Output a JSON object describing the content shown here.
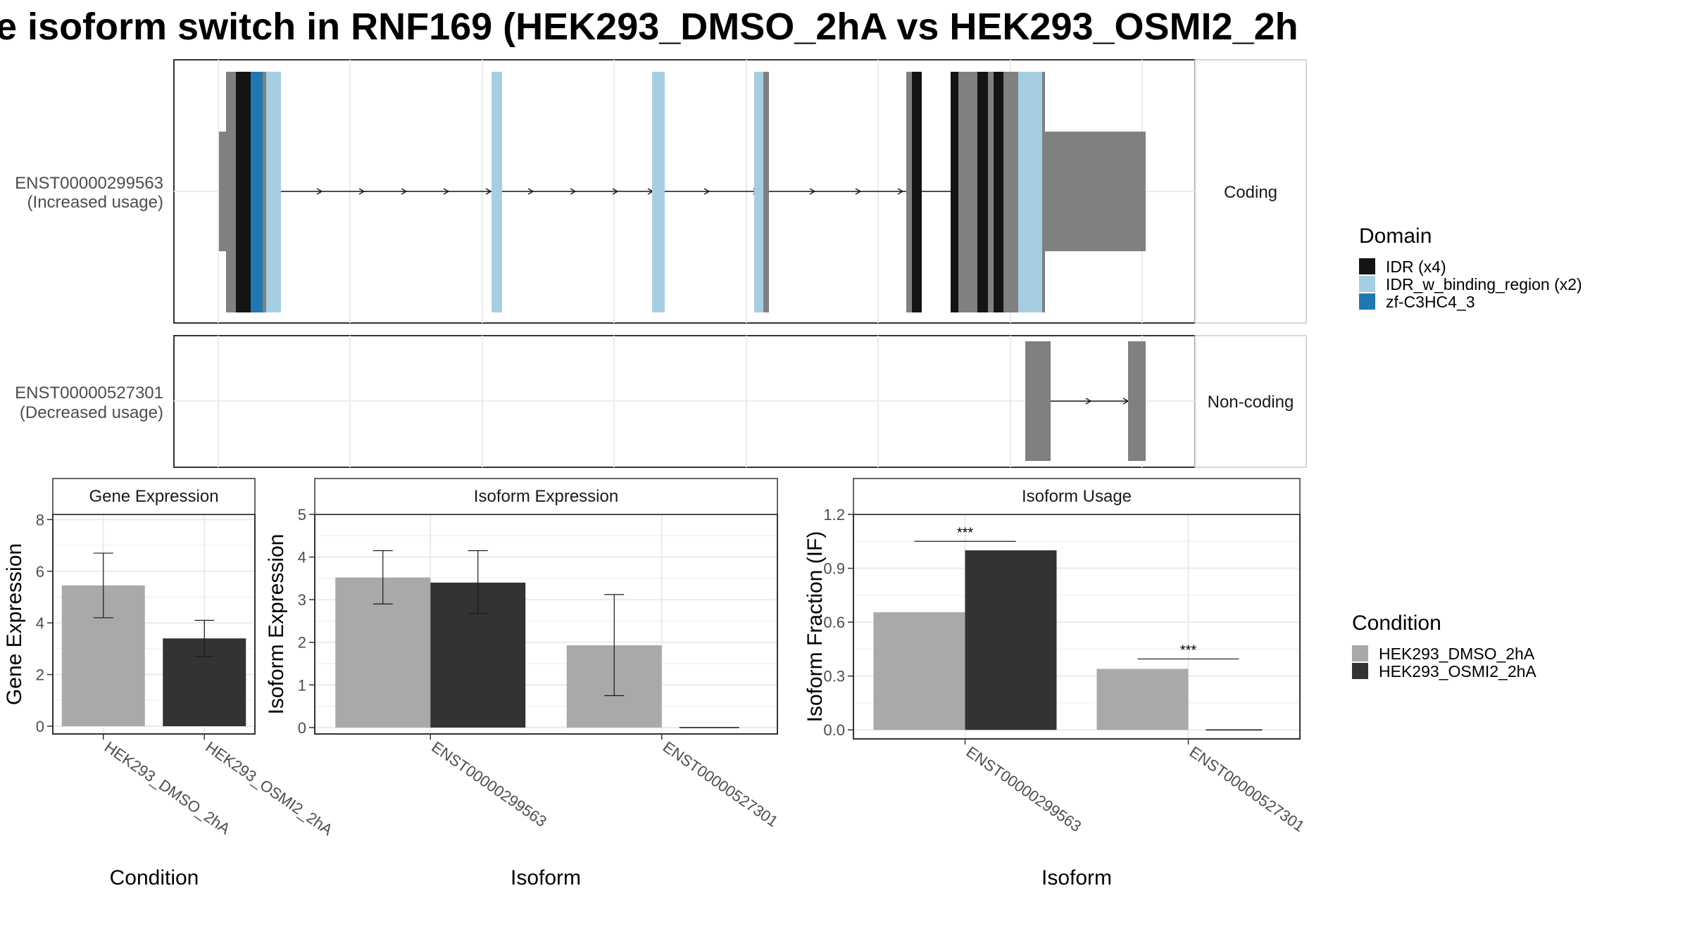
{
  "title": "e isoform switch in RNF169 (HEK293_DMSO_2hA vs HEK293_OSMI2_2h",
  "colors": {
    "dmso": "#a9a9a9",
    "osmi": "#333333",
    "exon_gray": "#808080",
    "idr": "#141414",
    "idr_w_binding": "#a6cee3",
    "zf": "#1f78b4"
  },
  "isoform_structure": {
    "tracks": [
      {
        "id": "ENST00000299563",
        "label_line1": "ENST00000299563",
        "label_line2": "(Increased usage)",
        "strip": "Coding"
      },
      {
        "id": "ENST00000527301",
        "label_line1": "ENST00000527301",
        "label_line2": "(Decreased usage)",
        "strip": "Non-coding"
      }
    ]
  },
  "domain_legend": {
    "title": "Domain",
    "entries": [
      {
        "label": "IDR (x4)",
        "color": "#141414"
      },
      {
        "label": "IDR_w_binding_region (x2)",
        "color": "#a6cee3"
      },
      {
        "label": "zf-C3HC4_3",
        "color": "#1f78b4"
      }
    ]
  },
  "condition_legend": {
    "title": "Condition",
    "entries": [
      {
        "label": "HEK293_DMSO_2hA",
        "color": "#a9a9a9"
      },
      {
        "label": "HEK293_OSMI2_2hA",
        "color": "#333333"
      }
    ]
  },
  "chart_data": [
    {
      "type": "bar",
      "title": "Gene Expression",
      "xlabel": "Condition",
      "ylabel": "Gene Expression",
      "ylim": [
        -0.3,
        8.2
      ],
      "yticks": [
        0,
        2,
        4,
        6,
        8
      ],
      "categories": [
        "HEK293_DMSO_2hA",
        "HEK293_OSMI2_2hA"
      ],
      "values": [
        5.45,
        3.4
      ],
      "errors": [
        [
          4.2,
          6.7
        ],
        [
          2.7,
          4.1
        ]
      ],
      "colors": [
        "#a9a9a9",
        "#333333"
      ]
    },
    {
      "type": "bar",
      "title": "Isoform Expression",
      "xlabel": "Isoform",
      "ylabel": "Isoform Expression",
      "ylim": [
        -0.15,
        5.0
      ],
      "yticks": [
        0,
        1,
        2,
        3,
        4,
        5
      ],
      "categories": [
        "ENST00000299563",
        "ENST00000527301"
      ],
      "series": [
        {
          "name": "HEK293_DMSO_2hA",
          "values": [
            3.52,
            1.93
          ],
          "errors": [
            [
              2.9,
              4.15
            ],
            [
              0.75,
              3.12
            ]
          ]
        },
        {
          "name": "HEK293_OSMI2_2hA",
          "values": [
            3.4,
            0.0
          ],
          "errors": [
            [
              2.68,
              4.15
            ],
            null
          ]
        }
      ]
    },
    {
      "type": "bar",
      "title": "Isoform Usage",
      "xlabel": "Isoform",
      "ylabel": "Isoform Fraction (IF)",
      "ylim": [
        -0.05,
        1.2
      ],
      "yticks": [
        0.0,
        0.3,
        0.6,
        0.9,
        1.2
      ],
      "ytick_labels": [
        "0.0",
        "0.3",
        "0.6",
        "0.9",
        "1.2"
      ],
      "categories": [
        "ENST00000299563",
        "ENST00000527301"
      ],
      "series": [
        {
          "name": "HEK293_DMSO_2hA",
          "values": [
            0.655,
            0.34
          ]
        },
        {
          "name": "HEK293_OSMI2_2hA",
          "values": [
            1.0,
            0.0
          ]
        }
      ],
      "significance": [
        {
          "category": "ENST00000299563",
          "label": "***",
          "y": 1.05
        },
        {
          "category": "ENST00000527301",
          "label": "***",
          "y": 0.395
        }
      ]
    }
  ]
}
